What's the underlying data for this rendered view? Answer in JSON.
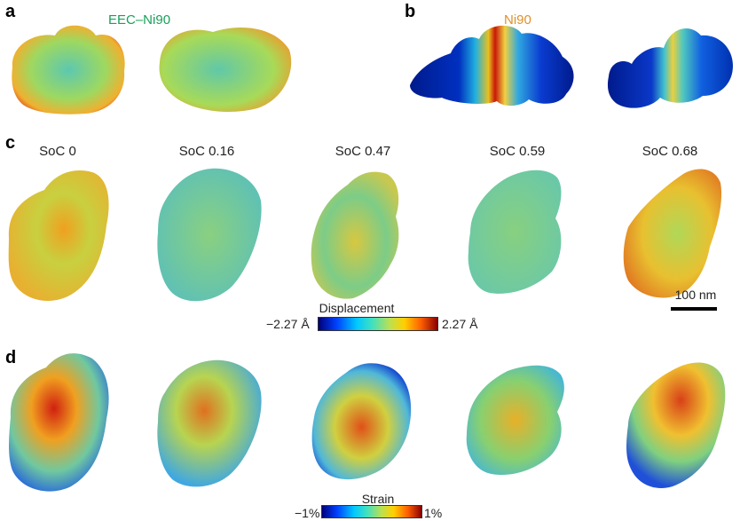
{
  "panels": {
    "a": {
      "letter": "a",
      "sample": "EEC–Ni90",
      "sample_color": "#1aa05a"
    },
    "b": {
      "letter": "b",
      "sample": "Ni90",
      "sample_color": "#e0902c"
    },
    "c": {
      "letter": "c",
      "soc_labels": [
        "SoC 0",
        "SoC 0.16",
        "SoC 0.47",
        "SoC 0.59",
        "SoC 0.68"
      ]
    },
    "d": {
      "letter": "d"
    }
  },
  "displacement_colorbar": {
    "title": "Displacement",
    "min": "−2.27 Å",
    "max": "2.27 Å"
  },
  "strain_colorbar": {
    "title": "Strain",
    "min": "−1%",
    "max": "1%"
  },
  "scale_bar": {
    "label": "100 nm"
  }
}
